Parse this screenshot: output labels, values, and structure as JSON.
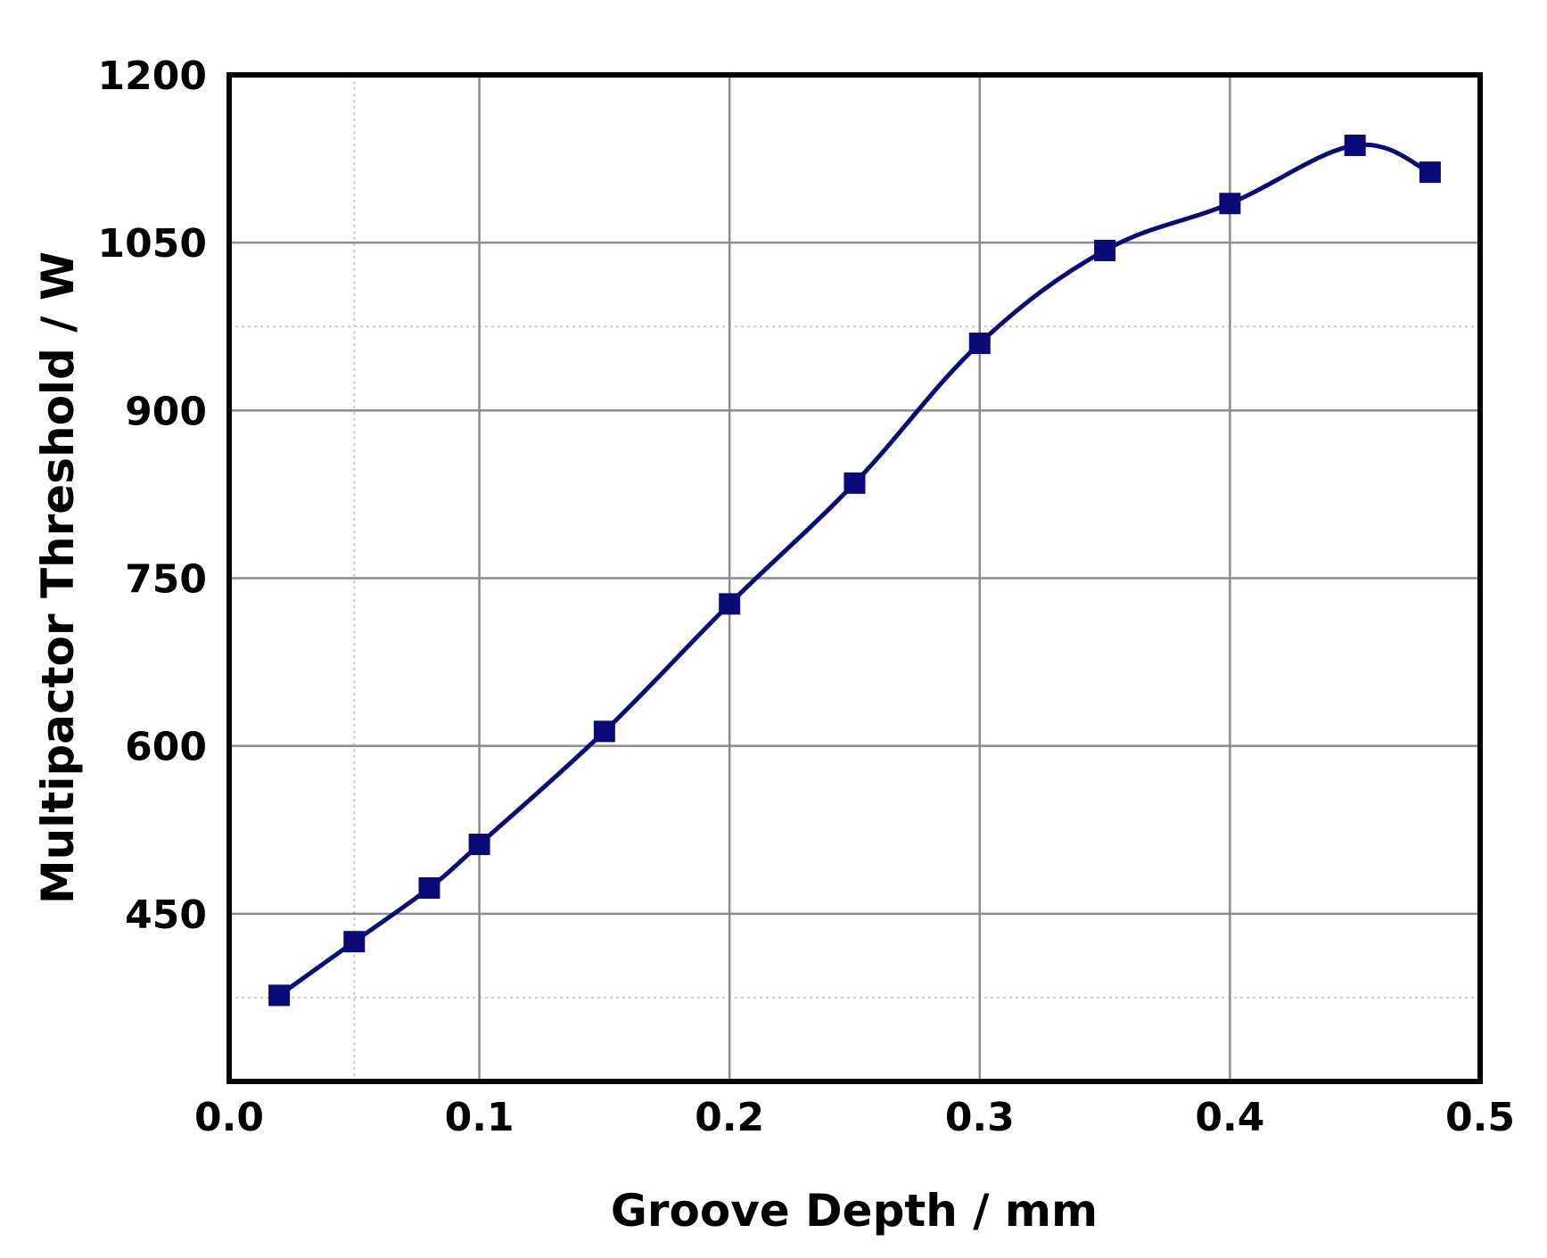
{
  "chart_data": {
    "type": "line",
    "title": "",
    "xlabel": "Groove Depth / mm",
    "ylabel": "Multipactor Threshold / W",
    "xlim": [
      0.0,
      0.5
    ],
    "ylim": [
      300,
      1200
    ],
    "x_ticks": [
      "0.0",
      "0.1",
      "0.2",
      "0.3",
      "0.4",
      "0.5"
    ],
    "y_ticks": [
      "450",
      "600",
      "750",
      "900",
      "1050",
      "1200"
    ],
    "grid": true,
    "legend": "none",
    "series": [
      {
        "color": "#0a0a78",
        "marker": "square",
        "x": [
          0.02,
          0.05,
          0.08,
          0.1,
          0.15,
          0.2,
          0.25,
          0.3,
          0.35,
          0.4,
          0.45,
          0.48
        ],
        "y": [
          377,
          425,
          473,
          512,
          613,
          727,
          835,
          960,
          1043,
          1085,
          1137,
          1113
        ]
      }
    ]
  }
}
